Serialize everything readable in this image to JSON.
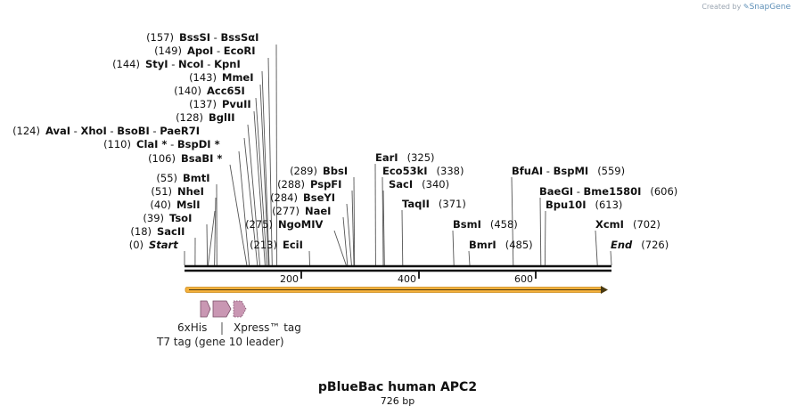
{
  "credit": {
    "prefix": "Created by",
    "brand": "SnapGene"
  },
  "title": "pBlueBac human APC2",
  "length_label": "726 bp",
  "sites": [
    {
      "pos": "(0)",
      "parts": [
        {
          "t": "Start",
          "s": "ital"
        }
      ]
    },
    {
      "pos": "(18)",
      "parts": [
        {
          "t": "SacII",
          "s": "b"
        }
      ]
    },
    {
      "pos": "(39)",
      "parts": [
        {
          "t": "TsoI",
          "s": "b"
        }
      ]
    },
    {
      "pos": "(40)",
      "parts": [
        {
          "t": "MslI",
          "s": "b"
        }
      ]
    },
    {
      "pos": "(51)",
      "parts": [
        {
          "t": "NheI",
          "s": "b"
        }
      ]
    },
    {
      "pos": "(55)",
      "parts": [
        {
          "t": "BmtI",
          "s": "b"
        }
      ]
    },
    {
      "pos": "(106)",
      "parts": [
        {
          "t": "BsaBI *",
          "s": "b"
        }
      ]
    },
    {
      "pos": "(110)",
      "parts": [
        {
          "t": "ClaI *",
          "s": "b"
        },
        {
          "t": " - ",
          "s": "sep"
        },
        {
          "t": "BspDI *",
          "s": "b"
        }
      ]
    },
    {
      "pos": "(124)",
      "parts": [
        {
          "t": "AvaI",
          "s": "b"
        },
        {
          "t": "  - ",
          "s": "sep"
        },
        {
          "t": "XhoI",
          "s": "b"
        },
        {
          "t": "  - ",
          "s": "sep"
        },
        {
          "t": "BsoBI",
          "s": "b"
        },
        {
          "t": "  - ",
          "s": "sep"
        },
        {
          "t": "PaeR7I",
          "s": "b"
        }
      ]
    },
    {
      "pos": "(128)",
      "parts": [
        {
          "t": "BglII",
          "s": "b"
        }
      ]
    },
    {
      "pos": "(137)",
      "parts": [
        {
          "t": "PvuII",
          "s": "b"
        }
      ]
    },
    {
      "pos": "(140)",
      "parts": [
        {
          "t": "Acc65I",
          "s": "b"
        }
      ]
    },
    {
      "pos": "(143)",
      "parts": [
        {
          "t": "MmeI",
          "s": "b"
        }
      ]
    },
    {
      "pos": "(144)",
      "parts": [
        {
          "t": "StyI",
          "s": "b"
        },
        {
          "t": "  - ",
          "s": "sep"
        },
        {
          "t": "NcoI",
          "s": "b"
        },
        {
          "t": "  - ",
          "s": "sep"
        },
        {
          "t": "KpnI",
          "s": "b"
        }
      ]
    },
    {
      "pos": "(149)",
      "parts": [
        {
          "t": "ApoI",
          "s": "b"
        },
        {
          "t": "  - ",
          "s": "sep"
        },
        {
          "t": "EcoRI",
          "s": "b"
        }
      ]
    },
    {
      "pos": "(157)",
      "parts": [
        {
          "t": "BssSI",
          "s": "b"
        },
        {
          "t": "  - ",
          "s": "sep"
        },
        {
          "t": "BssSαI",
          "s": "b"
        }
      ]
    },
    {
      "pos": "(213)",
      "parts": [
        {
          "t": "EciI",
          "s": "b"
        }
      ]
    },
    {
      "pos": "(275)",
      "parts": [
        {
          "t": "NgoMIV",
          "s": "b"
        }
      ]
    },
    {
      "pos": "(277)",
      "parts": [
        {
          "t": "NaeI",
          "s": "b"
        }
      ]
    },
    {
      "pos": "(284)",
      "parts": [
        {
          "t": "BseYI",
          "s": "b"
        }
      ]
    },
    {
      "pos": "(288)",
      "parts": [
        {
          "t": "PspFI",
          "s": "b"
        }
      ]
    },
    {
      "pos": "(289)",
      "parts": [
        {
          "t": "BbsI",
          "s": "b"
        }
      ]
    },
    {
      "pos": "(325)",
      "parts": [
        {
          "t": "EarI",
          "s": "b"
        }
      ]
    },
    {
      "pos": "(338)",
      "parts": [
        {
          "t": "Eco53kI",
          "s": "b"
        }
      ]
    },
    {
      "pos": "(340)",
      "parts": [
        {
          "t": "SacI",
          "s": "b"
        }
      ]
    },
    {
      "pos": "(371)",
      "parts": [
        {
          "t": "TaqII",
          "s": "b"
        }
      ]
    },
    {
      "pos": "(458)",
      "parts": [
        {
          "t": "BsmI",
          "s": "b"
        }
      ]
    },
    {
      "pos": "(485)",
      "parts": [
        {
          "t": "BmrI",
          "s": "b"
        }
      ]
    },
    {
      "pos": "(559)",
      "parts": [
        {
          "t": "BfuAI",
          "s": "b"
        },
        {
          "t": "  - ",
          "s": "sep"
        },
        {
          "t": "BspMI",
          "s": "b"
        }
      ]
    },
    {
      "pos": "(606)",
      "parts": [
        {
          "t": "BaeGI",
          "s": "b"
        },
        {
          "t": "  - ",
          "s": "sep"
        },
        {
          "t": "Bme1580I",
          "s": "b"
        }
      ]
    },
    {
      "pos": "(613)",
      "parts": [
        {
          "t": "Bpu10I",
          "s": "b"
        }
      ]
    },
    {
      "pos": "(702)",
      "parts": [
        {
          "t": "XcmI",
          "s": "b"
        }
      ]
    },
    {
      "pos": "(726)",
      "parts": [
        {
          "t": "End",
          "s": "ital"
        }
      ]
    }
  ],
  "ruler_ticks": [
    "200",
    "400",
    "600"
  ],
  "features": {
    "his": "6xHis",
    "xpress": "Xpress™ tag",
    "t7": "T7 tag (gene 10 leader)"
  },
  "colors": {
    "backbone": "#111111",
    "orf": "#f5b13c",
    "tag": "#c997b3",
    "tag_stroke": "#7a4f68"
  }
}
